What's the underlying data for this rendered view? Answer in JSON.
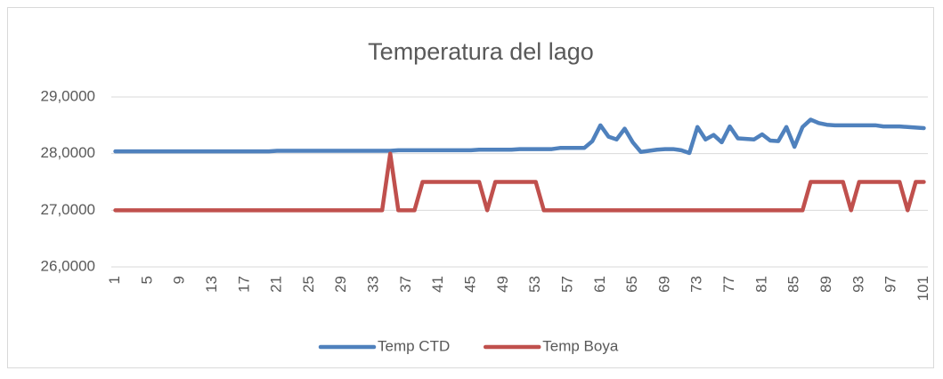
{
  "chart_data": {
    "type": "line",
    "title": "Temperatura del lago",
    "categories": [
      "1",
      null,
      null,
      null,
      "5",
      null,
      null,
      null,
      "9",
      null,
      null,
      null,
      "13",
      null,
      null,
      null,
      "17",
      null,
      null,
      null,
      "21",
      null,
      null,
      null,
      "25",
      null,
      null,
      null,
      "29",
      null,
      null,
      null,
      "33",
      null,
      null,
      null,
      "37",
      null,
      null,
      null,
      "41",
      null,
      null,
      null,
      "45",
      null,
      null,
      null,
      "49",
      null,
      null,
      null,
      "53",
      null,
      null,
      null,
      "57",
      null,
      null,
      null,
      "61",
      null,
      null,
      null,
      "65",
      null,
      null,
      null,
      "69",
      null,
      null,
      null,
      "73",
      null,
      null,
      null,
      "77",
      null,
      null,
      null,
      "81",
      null,
      null,
      null,
      "85",
      null,
      null,
      null,
      "89",
      null,
      null,
      null,
      "93",
      null,
      null,
      null,
      "97",
      null,
      null,
      null,
      "101"
    ],
    "series": [
      {
        "name": "Temp CTD",
        "color": "#4f81bd",
        "values": [
          28.04,
          28.04,
          28.04,
          28.04,
          28.04,
          28.04,
          28.04,
          28.04,
          28.04,
          28.04,
          28.04,
          28.04,
          28.04,
          28.04,
          28.04,
          28.04,
          28.04,
          28.04,
          28.04,
          28.04,
          28.05,
          28.05,
          28.05,
          28.05,
          28.05,
          28.05,
          28.05,
          28.05,
          28.05,
          28.05,
          28.05,
          28.05,
          28.05,
          28.05,
          28.05,
          28.06,
          28.06,
          28.06,
          28.06,
          28.06,
          28.06,
          28.06,
          28.06,
          28.06,
          28.06,
          28.07,
          28.07,
          28.07,
          28.07,
          28.07,
          28.08,
          28.08,
          28.08,
          28.08,
          28.08,
          28.1,
          28.1,
          28.1,
          28.1,
          28.22,
          28.5,
          28.3,
          28.25,
          28.44,
          28.2,
          28.03,
          28.05,
          28.07,
          28.08,
          28.08,
          28.06,
          28.01,
          28.47,
          28.25,
          28.33,
          28.2,
          28.48,
          28.27,
          28.26,
          28.25,
          28.34,
          28.23,
          28.22,
          28.47,
          28.12,
          28.47,
          28.6,
          28.54,
          28.51,
          28.5,
          28.5,
          28.5,
          28.5,
          28.5,
          28.5,
          28.48,
          28.48,
          28.48,
          28.47,
          28.46,
          28.45
        ]
      },
      {
        "name": "Temp Boya",
        "color": "#c0504d",
        "values": [
          27,
          27,
          27,
          27,
          27,
          27,
          27,
          27,
          27,
          27,
          27,
          27,
          27,
          27,
          27,
          27,
          27,
          27,
          27,
          27,
          27,
          27,
          27,
          27,
          27,
          27,
          27,
          27,
          27,
          27,
          27,
          27,
          27,
          27,
          28,
          27,
          27,
          27,
          27.5,
          27.5,
          27.5,
          27.5,
          27.5,
          27.5,
          27.5,
          27.5,
          27,
          27.5,
          27.5,
          27.5,
          27.5,
          27.5,
          27.5,
          27,
          27,
          27,
          27,
          27,
          27,
          27,
          27,
          27,
          27,
          27,
          27,
          27,
          27,
          27,
          27,
          27,
          27,
          27,
          27,
          27,
          27,
          27,
          27,
          27,
          27,
          27,
          27,
          27,
          27,
          27,
          27,
          27,
          27.5,
          27.5,
          27.5,
          27.5,
          27.5,
          27,
          27.5,
          27.5,
          27.5,
          27.5,
          27.5,
          27.5,
          27,
          27.5,
          27.5
        ]
      }
    ],
    "ylim": [
      26,
      29
    ],
    "yticks": [
      {
        "value": 26,
        "label": "26,0000"
      },
      {
        "value": 27,
        "label": "27,0000"
      },
      {
        "value": 28,
        "label": "28,0000"
      },
      {
        "value": 29,
        "label": "29,0000"
      }
    ],
    "grid": true,
    "legend": "bottom"
  }
}
